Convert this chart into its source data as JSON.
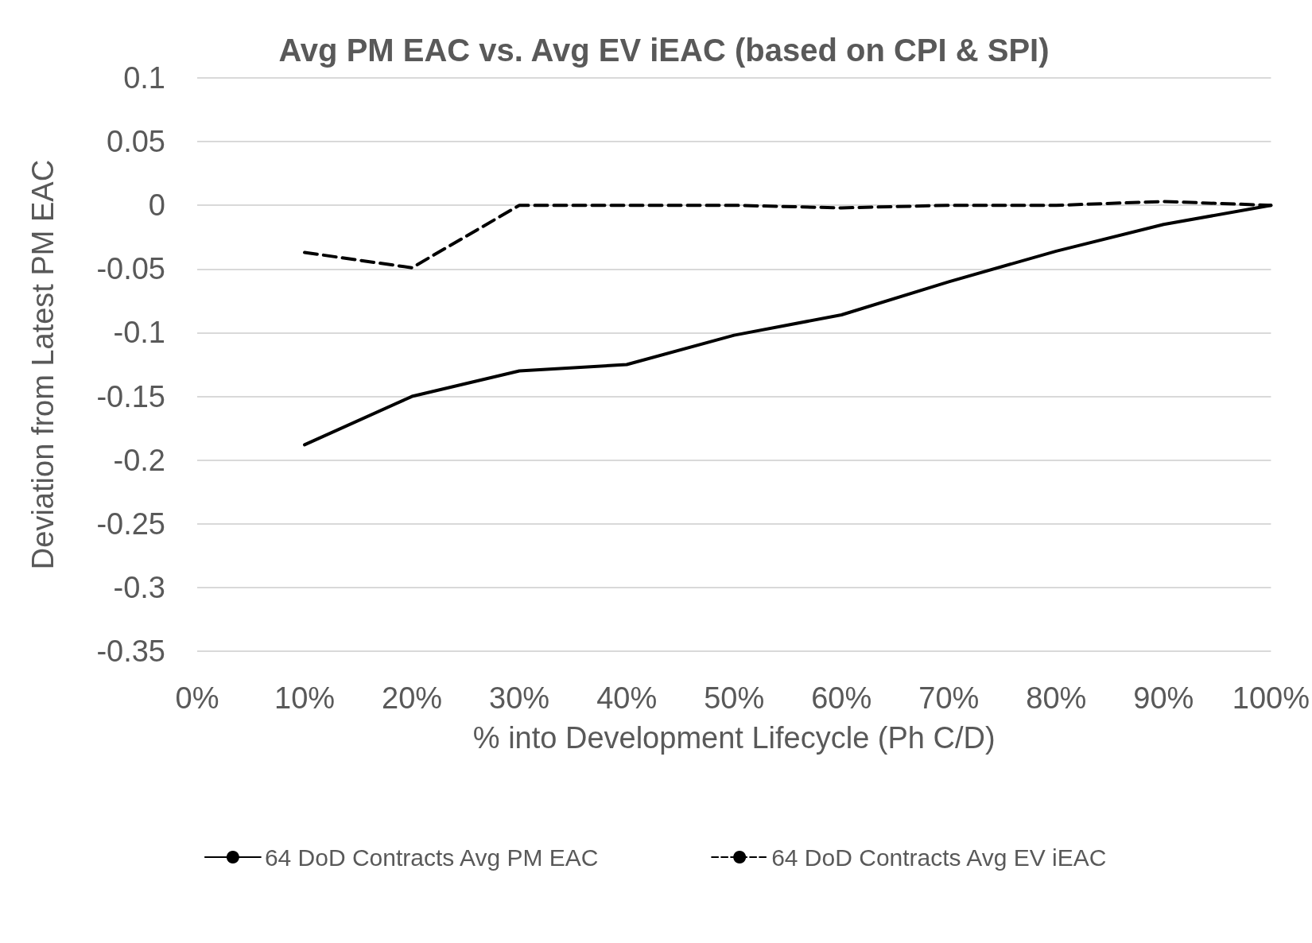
{
  "chart_data": {
    "type": "line",
    "title": "Avg PM EAC vs. Avg EV iEAC (based on CPI & SPI)",
    "xlabel": "% into Development Lifecycle (Ph C/D)",
    "ylabel": "Deviation from Latest PM EAC",
    "categories": [
      "0%",
      "10%",
      "20%",
      "30%",
      "40%",
      "50%",
      "60%",
      "70%",
      "80%",
      "90%",
      "100%"
    ],
    "series": [
      {
        "name": "64 DoD Contracts Avg PM EAC",
        "color": "#000000",
        "line_style": "solid",
        "values": [
          null,
          -0.188,
          -0.15,
          -0.13,
          -0.125,
          -0.102,
          -0.086,
          -0.06,
          -0.036,
          -0.015,
          0
        ]
      },
      {
        "name": "64 DoD Contracts Avg EV iEAC",
        "color": "#000000",
        "line_style": "dashed",
        "values": [
          null,
          -0.037,
          -0.049,
          0,
          0,
          0,
          -0.002,
          0,
          0,
          0.003,
          0
        ]
      }
    ],
    "ylim": [
      -0.35,
      0.1
    ],
    "yticks": [
      -0.35,
      -0.3,
      -0.25,
      -0.2,
      -0.15,
      -0.1,
      -0.05,
      0,
      0.05,
      0.1
    ],
    "grid": "y",
    "legend": "bottom",
    "marker": "none"
  }
}
